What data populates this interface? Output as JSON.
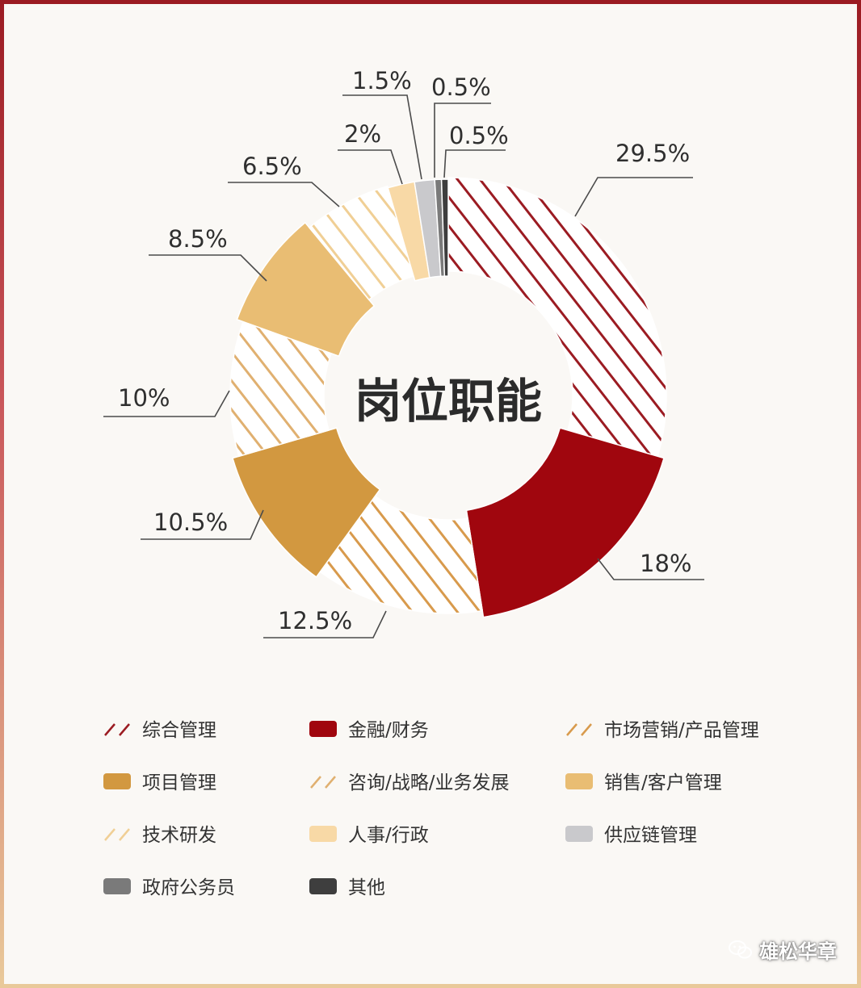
{
  "chart_data": {
    "type": "pie",
    "title": "岗位职能",
    "series": [
      {
        "name": "综合管理",
        "value": 29.5,
        "label": "29.5%",
        "color": "#9b1b22",
        "pattern": "hatch"
      },
      {
        "name": "金融/财务",
        "value": 18,
        "label": "18%",
        "color": "#a0060e",
        "pattern": "solid"
      },
      {
        "name": "市场营销/产品管理",
        "value": 12.5,
        "label": "12.5%",
        "color": "#d89a4c",
        "pattern": "hatch"
      },
      {
        "name": "项目管理",
        "value": 10.5,
        "label": "10.5%",
        "color": "#d29840",
        "pattern": "solid"
      },
      {
        "name": "咨询/战略/业务发展",
        "value": 10,
        "label": "10%",
        "color": "#e0b070",
        "pattern": "hatch"
      },
      {
        "name": "销售/客户管理",
        "value": 8.5,
        "label": "8.5%",
        "color": "#e9bd73",
        "pattern": "solid"
      },
      {
        "name": "技术研发",
        "value": 6.5,
        "label": "6.5%",
        "color": "#f0cf95",
        "pattern": "hatch"
      },
      {
        "name": "人事/行政",
        "value": 2,
        "label": "2%",
        "color": "#f8d9a6",
        "pattern": "solid"
      },
      {
        "name": "供应链管理",
        "value": 1.5,
        "label": "1.5%",
        "color": "#c9c9cc",
        "pattern": "solid"
      },
      {
        "name": "政府公务员",
        "value": 0.5,
        "label": "0.5%",
        "color": "#7a7a7a",
        "pattern": "solid"
      },
      {
        "name": "其他",
        "value": 0.5,
        "label": "0.5%",
        "color": "#3e3e3e",
        "pattern": "solid"
      }
    ],
    "legend_position": "bottom"
  },
  "watermark": {
    "text": "雄松华章",
    "icon": "wechat-icon"
  }
}
